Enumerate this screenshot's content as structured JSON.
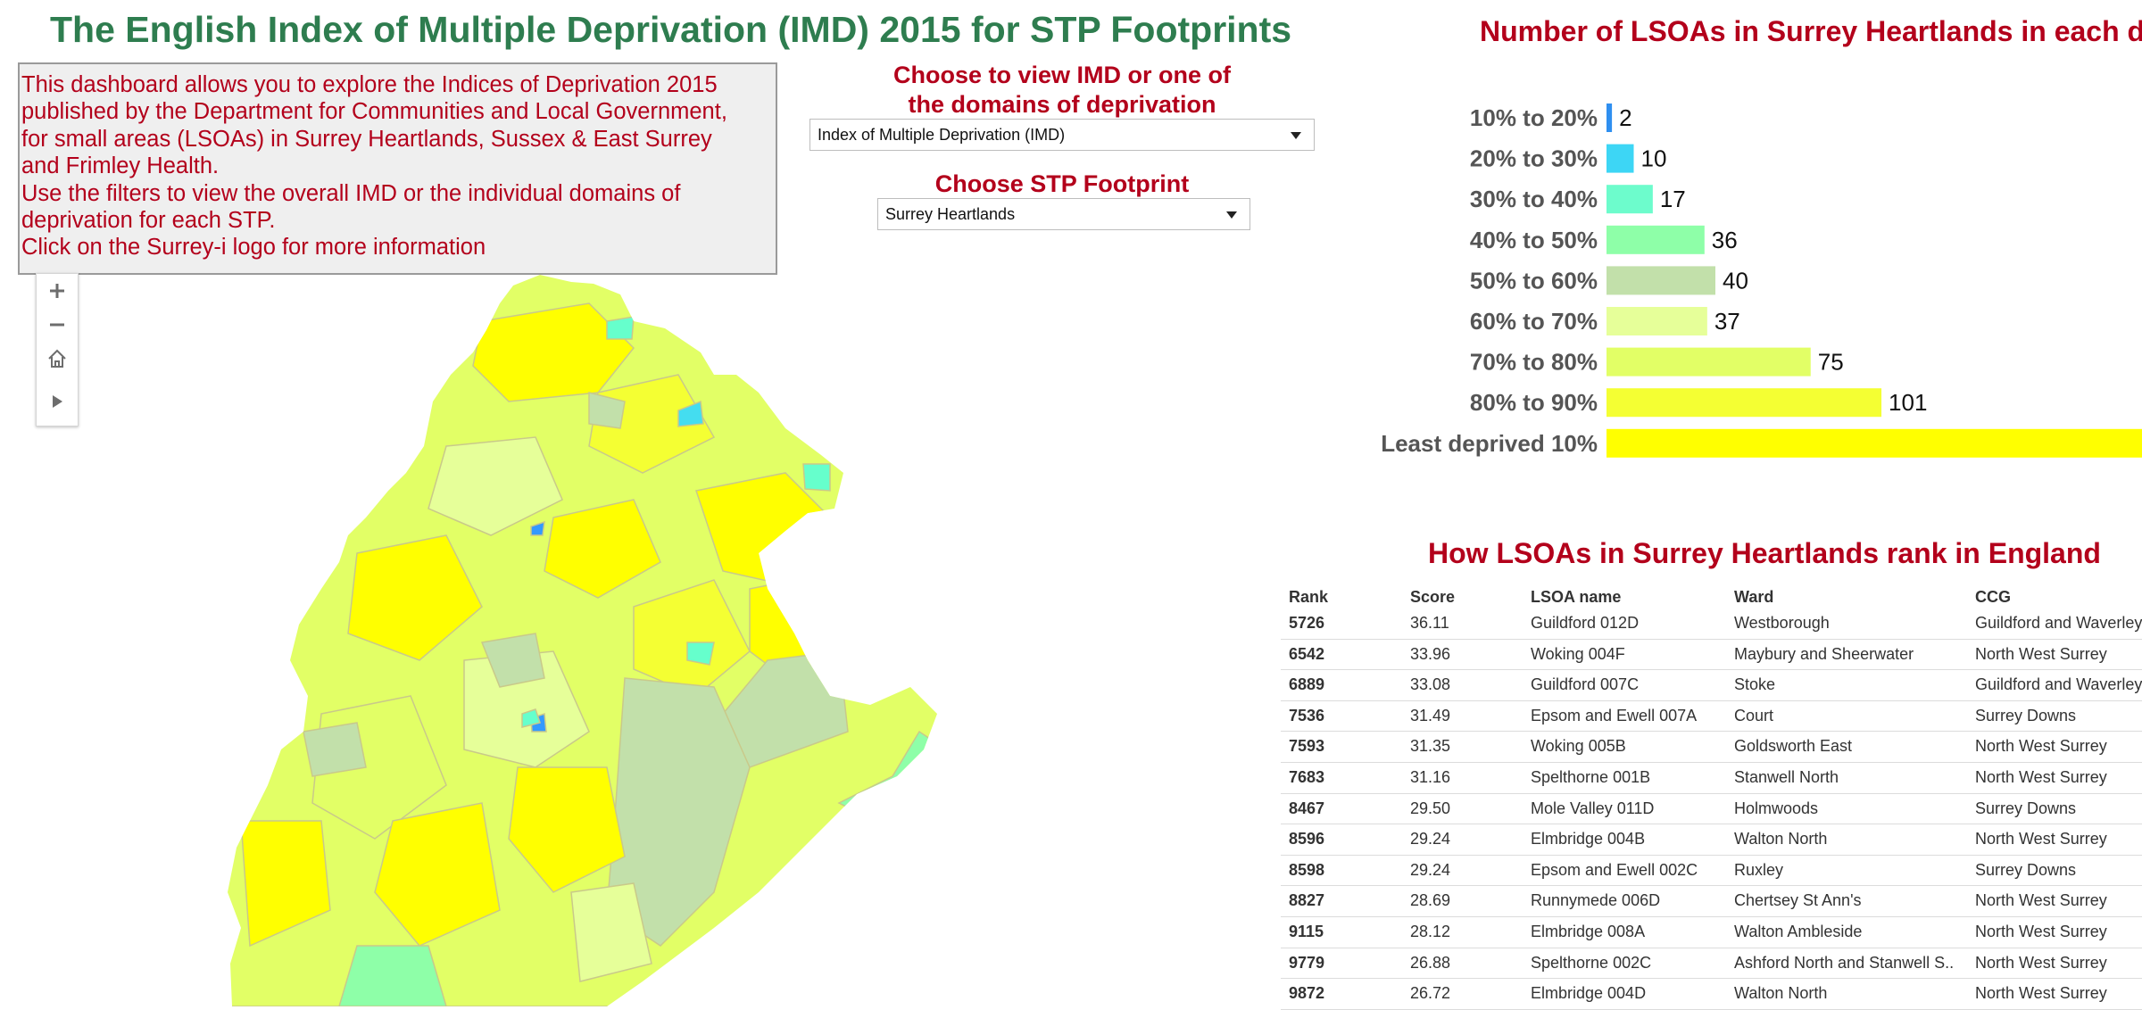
{
  "header": {
    "title": "The English Index of Multiple Deprivation (IMD) 2015 for STP Footprints"
  },
  "intro": {
    "lines": [
      "This dashboard allows you to explore the Indices of Deprivation 2015",
      "published by the Department for Communities and Local Government,",
      "for small areas (LSOAs) in Surrey Heartlands, Sussex & East Surrey",
      "and Frimley Health.",
      "Use the filters to view the overall IMD or the individual domains of",
      "deprivation for each STP.",
      "Click on the Surrey-i logo for more information"
    ]
  },
  "filters": {
    "domain_label_1": "Choose to view IMD or one of",
    "domain_label_2": "the domains of deprivation",
    "domain_value": "Index of Multiple Deprivation (IMD)",
    "stp_label": "Choose STP Footprint",
    "stp_value": "Surrey Heartlands"
  },
  "map": {
    "controls": [
      "zoom-in",
      "zoom-out",
      "home",
      "play"
    ],
    "colors": {
      "least_deprived": "#ffff00",
      "80_90": "#f4ff33",
      "70_80": "#e2ff66",
      "60_70": "#e6ff99",
      "50_60": "#c2e0aa",
      "40_50": "#8effa8",
      "30_40": "#66ffcc",
      "20_30": "#44ddf0",
      "10_20": "#3399ff"
    }
  },
  "chart_data": {
    "type": "bar",
    "title": "Number of LSOAs in Surrey Heartlands in each d",
    "categories": [
      "10% to 20%",
      "20% to 30%",
      "30% to 40%",
      "40% to 50%",
      "50% to 60%",
      "60% to 70%",
      "70% to 80%",
      "80% to 90%",
      "Least deprived 10%"
    ],
    "values": [
      2,
      10,
      17,
      36,
      40,
      37,
      75,
      101,
      null
    ],
    "colors": [
      "#2f8ff0",
      "#3dd6f5",
      "#6dfccc",
      "#8effa8",
      "#c2e0aa",
      "#e6ff99",
      "#e2ff66",
      "#f4ff33",
      "#ffff00"
    ],
    "orientation": "horizontal"
  },
  "table": {
    "title": "How LSOAs in Surrey Heartlands rank in England",
    "headers": [
      "Rank",
      "Score",
      "LSOA name",
      "Ward",
      "CCG"
    ],
    "rows": [
      [
        "5726",
        "36.11",
        "Guildford 012D",
        "Westborough",
        "Guildford and Waverley"
      ],
      [
        "6542",
        "33.96",
        "Woking 004F",
        "Maybury and Sheerwater",
        "North West Surrey"
      ],
      [
        "6889",
        "33.08",
        "Guildford 007C",
        "Stoke",
        "Guildford and Waverley"
      ],
      [
        "7536",
        "31.49",
        "Epsom and Ewell 007A",
        "Court",
        "Surrey Downs"
      ],
      [
        "7593",
        "31.35",
        "Woking 005B",
        "Goldsworth East",
        "North West Surrey"
      ],
      [
        "7683",
        "31.16",
        "Spelthorne 001B",
        "Stanwell North",
        "North West Surrey"
      ],
      [
        "8467",
        "29.50",
        "Mole Valley 011D",
        "Holmwoods",
        "Surrey Downs"
      ],
      [
        "8596",
        "29.24",
        "Elmbridge 004B",
        "Walton North",
        "North West Surrey"
      ],
      [
        "8598",
        "29.24",
        "Epsom and Ewell 002C",
        "Ruxley",
        "Surrey Downs"
      ],
      [
        "8827",
        "28.69",
        "Runnymede 006D",
        "Chertsey St Ann's",
        "North West Surrey"
      ],
      [
        "9115",
        "28.12",
        "Elmbridge 008A",
        "Walton Ambleside",
        "North West Surrey"
      ],
      [
        "9779",
        "26.88",
        "Spelthorne 002C",
        "Ashford North and Stanwell S..",
        "North West Surrey"
      ],
      [
        "9872",
        "26.72",
        "Elmbridge 004D",
        "Walton North",
        "North West Surrey"
      ]
    ]
  }
}
